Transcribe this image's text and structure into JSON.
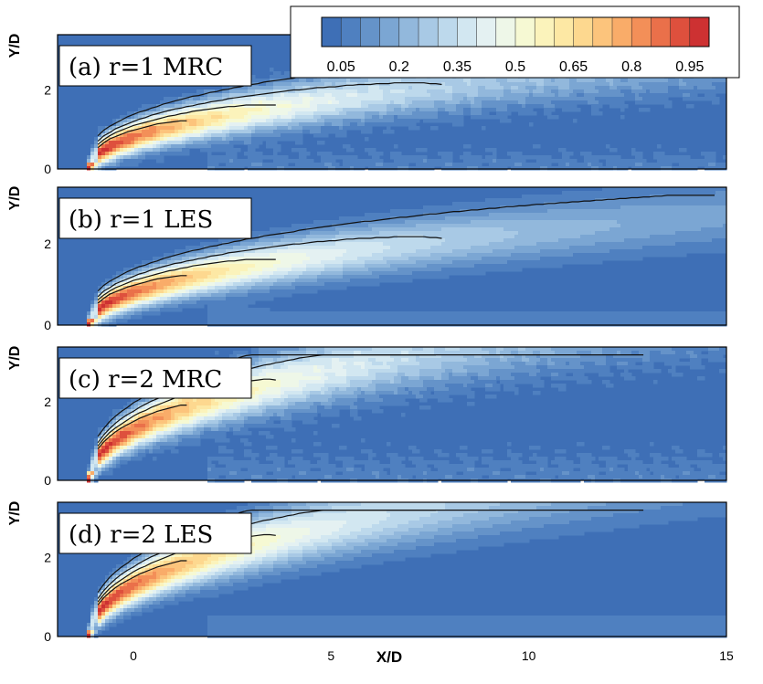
{
  "chart_data": {
    "type": "heatmap",
    "description_axes": {
      "xlabel": "X/D",
      "ylabel": "Y/D",
      "xlim": [
        -2,
        15
      ],
      "ylim": [
        0,
        3.4
      ],
      "xticks": [
        0,
        5,
        10,
        15
      ],
      "yticks": [
        0,
        2
      ]
    },
    "colorbar": {
      "ticks": [
        0.05,
        0.2,
        0.35,
        0.5,
        0.65,
        0.8,
        0.95
      ],
      "levels": [
        0,
        0.05,
        0.1,
        0.15,
        0.2,
        0.25,
        0.3,
        0.35,
        0.4,
        0.45,
        0.5,
        0.55,
        0.6,
        0.65,
        0.7,
        0.75,
        0.8,
        0.85,
        0.9,
        0.95,
        1.0
      ],
      "colors": [
        "#3e6fb6",
        "#4f80c0",
        "#6593c9",
        "#7ba6d3",
        "#92b8dc",
        "#a8c9e5",
        "#bdd9ec",
        "#d2e7f1",
        "#e4f1f2",
        "#eef7e8",
        "#f6f9d3",
        "#fbf3bb",
        "#fde8a4",
        "#fdd88f",
        "#fcc47c",
        "#f9ac69",
        "#f38f58",
        "#ea704a",
        "#de503d",
        "#cd3132"
      ]
    },
    "panels": [
      {
        "title": "(a) r=1 MRC",
        "y_label": "Y/D",
        "y_ticks": [
          "0",
          "2"
        ],
        "noisy": true,
        "spread": 1.0
      },
      {
        "title": "(b) r=1 LES",
        "y_label": "Y/D",
        "y_ticks": [
          "0",
          "2"
        ],
        "noisy": false,
        "spread": 1.0
      },
      {
        "title": "(c) r=2 MRC",
        "y_label": "Y/D",
        "y_ticks": [
          "0",
          "2"
        ],
        "noisy": true,
        "spread": 1.6
      },
      {
        "title": "(d) r=2 LES",
        "y_label": "Y/D",
        "y_ticks": [
          "0",
          "2"
        ],
        "noisy": false,
        "spread": 1.6
      }
    ],
    "x_tick_labels": [
      "0",
      "5",
      "10",
      "15"
    ],
    "x_axis_label": "X/D"
  }
}
